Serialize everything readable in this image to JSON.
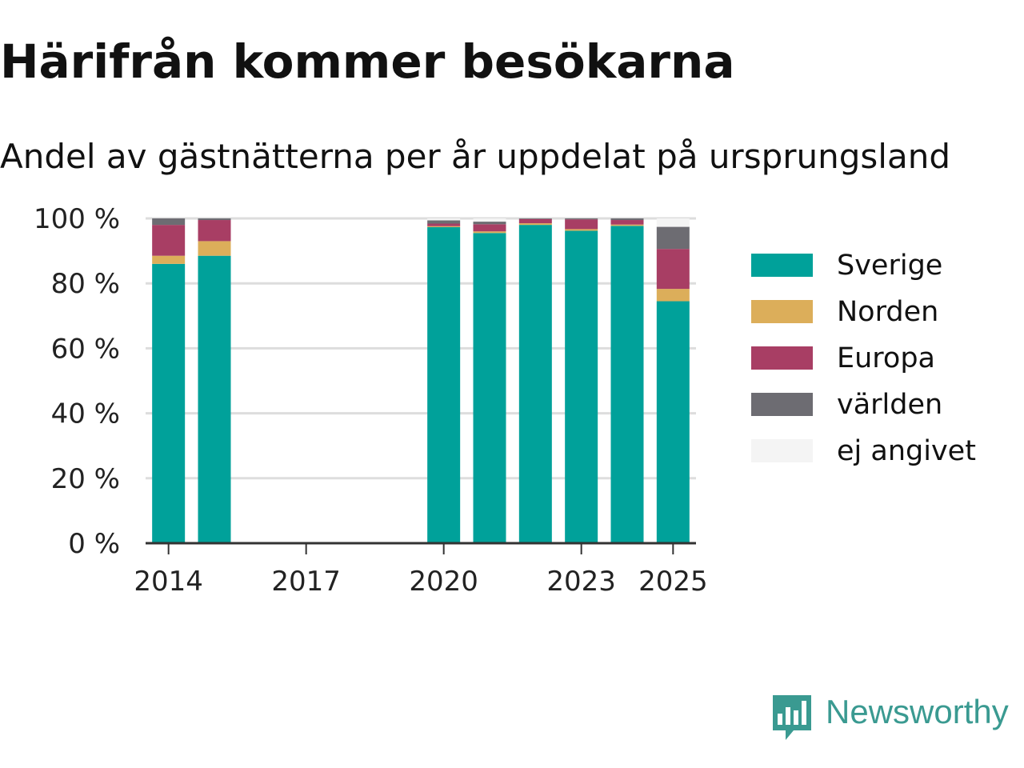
{
  "chart_data": {
    "type": "bar",
    "stacked": true,
    "title": "Härifrån kommer besökarna",
    "subtitle": "Andel av gästnätterna per år uppdelat på ursprungsland",
    "xlabel": "",
    "ylabel": "",
    "x_ticks": [
      "2014",
      "2017",
      "2020",
      "2023",
      "2025"
    ],
    "y_ticks": [
      "0 %",
      "20 %",
      "40 %",
      "60 %",
      "80 %",
      "100 %"
    ],
    "xlim": [
      2013.5,
      2025.5
    ],
    "ylim": [
      0,
      100
    ],
    "grid": true,
    "legend_position": "right",
    "years": [
      2014,
      2015,
      2020,
      2021,
      2022,
      2023,
      2024,
      2025
    ],
    "series": [
      {
        "name": "Sverige",
        "color": "#00a19a",
        "values": [
          86,
          88.5,
          97.3,
          95.5,
          98,
          96.2,
          97.7,
          74.5
        ]
      },
      {
        "name": "Norden",
        "color": "#dcae5a",
        "values": [
          2.5,
          4.5,
          0.3,
          0.5,
          0.5,
          0.5,
          0.4,
          3.8
        ]
      },
      {
        "name": "Europa",
        "color": "#a83e64",
        "values": [
          9.5,
          6.5,
          0.8,
          2.2,
          1.3,
          3,
          1.4,
          12.3
        ]
      },
      {
        "name": "världen",
        "color": "#6d6c72",
        "values": [
          2,
          0.5,
          1,
          0.8,
          0.2,
          0.3,
          0.5,
          6.8
        ]
      },
      {
        "name": "ej angivet",
        "color": "#f4f4f4",
        "values": [
          0,
          0,
          0.6,
          1,
          0,
          0,
          0,
          2.6
        ]
      }
    ]
  },
  "brand": {
    "name": "Newsworthy",
    "color": "#3a9a91",
    "icon": "newsworthy-logo-icon"
  }
}
